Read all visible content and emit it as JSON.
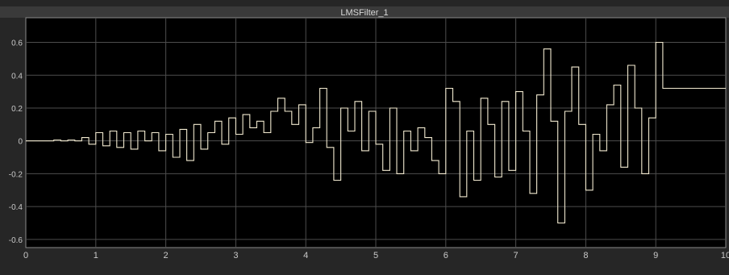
{
  "chart_data": {
    "type": "line",
    "title": "LMSFilter_1",
    "xlabel": "",
    "ylabel": "",
    "xlim": [
      0,
      10
    ],
    "ylim": [
      -0.65,
      0.75
    ],
    "xticks": [
      "0",
      "1",
      "2",
      "3",
      "4",
      "5",
      "6",
      "7",
      "8",
      "9",
      "10"
    ],
    "yticks": [
      "-0.6",
      "-0.4",
      "-0.2",
      "0",
      "0.2",
      "0.4",
      "0.6"
    ],
    "grid": true,
    "step": true,
    "series": [
      {
        "name": "",
        "x": [
          0.0,
          0.1,
          0.2,
          0.3,
          0.4,
          0.5,
          0.6,
          0.7,
          0.8,
          0.9,
          1.0,
          1.1,
          1.2,
          1.3,
          1.4,
          1.5,
          1.6,
          1.7,
          1.8,
          1.9,
          2.0,
          2.1,
          2.2,
          2.3,
          2.4,
          2.5,
          2.6,
          2.7,
          2.8,
          2.9,
          3.0,
          3.1,
          3.2,
          3.3,
          3.4,
          3.5,
          3.6,
          3.7,
          3.8,
          3.9,
          4.0,
          4.1,
          4.2,
          4.3,
          4.4,
          4.5,
          4.6,
          4.7,
          4.8,
          4.9,
          5.0,
          5.1,
          5.2,
          5.3,
          5.4,
          5.5,
          5.6,
          5.7,
          5.8,
          5.9,
          6.0,
          6.1,
          6.2,
          6.3,
          6.4,
          6.5,
          6.6,
          6.7,
          6.8,
          6.9,
          7.0,
          7.1,
          7.2,
          7.3,
          7.4,
          7.5,
          7.6,
          7.7,
          7.8,
          7.9,
          8.0,
          8.1,
          8.2,
          8.3,
          8.4,
          8.5,
          8.6,
          8.7,
          8.8,
          8.9,
          9.0,
          9.1,
          9.2,
          9.3,
          9.4,
          9.5,
          9.6,
          9.7,
          9.8,
          9.9,
          10.0
        ],
        "y": [
          0.0,
          0.0,
          0.0,
          0.0,
          0.005,
          0.0,
          0.005,
          0.0,
          0.02,
          -0.02,
          0.05,
          -0.03,
          0.06,
          -0.04,
          0.05,
          -0.05,
          0.06,
          0.0,
          0.05,
          -0.06,
          0.04,
          -0.1,
          0.07,
          -0.12,
          0.1,
          -0.05,
          0.05,
          0.12,
          -0.02,
          0.14,
          0.04,
          0.16,
          0.08,
          0.12,
          0.05,
          0.18,
          0.26,
          0.18,
          0.1,
          0.22,
          -0.01,
          0.08,
          0.32,
          -0.04,
          -0.24,
          0.2,
          0.06,
          0.24,
          -0.06,
          0.18,
          -0.02,
          -0.18,
          0.2,
          -0.2,
          0.06,
          -0.06,
          0.08,
          0.02,
          -0.12,
          -0.2,
          0.32,
          0.24,
          -0.34,
          0.06,
          -0.24,
          0.26,
          0.1,
          -0.22,
          0.24,
          -0.18,
          0.3,
          0.06,
          -0.32,
          0.28,
          0.56,
          0.12,
          -0.5,
          0.18,
          0.45,
          0.1,
          -0.3,
          0.04,
          -0.06,
          0.22,
          0.34,
          -0.16,
          0.46,
          0.2,
          -0.2,
          0.14,
          0.6,
          0.32,
          0.32,
          0.32,
          0.32,
          0.32,
          0.32,
          0.32,
          0.32,
          0.32,
          0.32
        ]
      }
    ]
  }
}
